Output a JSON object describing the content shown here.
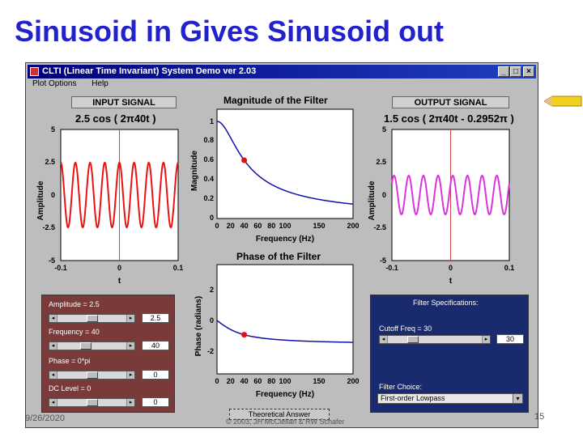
{
  "slide": {
    "title": "Sinusoid in Gives Sinusoid out",
    "date": "9/26/2020",
    "copyright": "© 2003, JH McClellan & RW Schafer",
    "page_number": "15"
  },
  "window": {
    "title": "CLTI (Linear Time Invariant) System Demo ver 2.03",
    "minimize_label": "_",
    "maximize_label": "□",
    "close_label": "×",
    "menu": [
      "Plot Options",
      "Help"
    ]
  },
  "input_panel": {
    "label": "INPUT SIGNAL",
    "formula": "2.5 cos ( 2π40t )",
    "ylabel": "Amplitude",
    "xlabel": "t",
    "yticks": [
      "5",
      "2.5",
      "0",
      "-2.5",
      "-5"
    ],
    "xticks": [
      "-0.1",
      "0",
      "0.1"
    ],
    "color": "#ee1111"
  },
  "output_panel": {
    "label": "OUTPUT SIGNAL",
    "formula": "1.5 cos ( 2π40t - 0.2952π )",
    "ylabel": "Amplitude",
    "xlabel": "t",
    "yticks": [
      "5",
      "2.5",
      "0",
      "-2.5",
      "-5"
    ],
    "xticks": [
      "-0.1",
      "0",
      "0.1"
    ],
    "color": "#dd33dd"
  },
  "magnitude_plot": {
    "title": "Magnitude of the Filter",
    "ylabel": "Magnitude",
    "xlabel": "Frequency (Hz)",
    "yticks": [
      "1",
      "0.8",
      "0.6",
      "0.4",
      "0.2",
      "0"
    ],
    "xticks": [
      "0",
      "20",
      "40",
      "60",
      "80",
      "100",
      "150",
      "200"
    ],
    "color": "#1111aa",
    "marker_color": "#dd1111"
  },
  "phase_plot": {
    "title": "Phase of the Filter",
    "ylabel": "Phase (radians)",
    "xlabel": "Frequency (Hz)",
    "yticks": [
      "2",
      "0",
      "-2"
    ],
    "xticks": [
      "0",
      "20",
      "40",
      "60",
      "80",
      "100",
      "150",
      "200"
    ],
    "color": "#1111aa",
    "marker_color": "#dd1111"
  },
  "controls": [
    {
      "label": "Amplitude = 2.5",
      "value": "2.5",
      "level": 0.5
    },
    {
      "label": "Frequency = 40",
      "value": "40",
      "level": 0.4
    },
    {
      "label": "Phase = 0*pi",
      "value": "0",
      "level": 0.5
    },
    {
      "label": "DC Level = 0",
      "value": "0",
      "level": 0.5
    }
  ],
  "filter_spec": {
    "heading": "Filter Specifications:",
    "cutoff_label": "Cutoff Freq = 30",
    "cutoff_value": "30",
    "cutoff_level": 0.24,
    "choice_label": "Filter Choice:",
    "choice_value": "First-order Lowpass"
  },
  "theoretical_button": "Theoretical Answer"
}
